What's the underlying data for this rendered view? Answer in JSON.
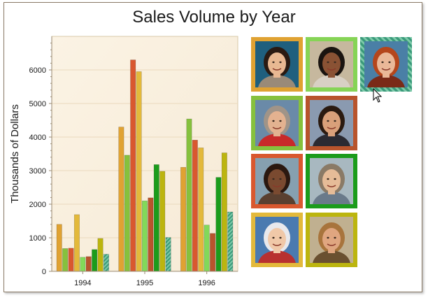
{
  "chart_data": {
    "type": "bar",
    "title": "Sales Volume by Year",
    "xlabel": "",
    "ylabel": "Thousands of Dollars",
    "categories": [
      "1994",
      "1995",
      "1996"
    ],
    "ylim": [
      0,
      7000
    ],
    "yticks": [
      0,
      1000,
      2000,
      3000,
      4000,
      5000,
      6000
    ],
    "grid": true,
    "legend": "none",
    "series": [
      {
        "values": [
          1400,
          4300,
          3100
        ],
        "color": "#e0a232"
      },
      {
        "values": [
          680,
          3460,
          4540
        ],
        "color": "#86c13d"
      },
      {
        "values": [
          690,
          6300,
          3910
        ],
        "color": "#d9582f"
      },
      {
        "values": [
          1690,
          5950,
          3680
        ],
        "color": "#e3b93b"
      },
      {
        "values": [
          420,
          2100,
          1380
        ],
        "color": "#82d95a"
      },
      {
        "values": [
          440,
          2190,
          1130
        ],
        "color": "#b8542c"
      },
      {
        "values": [
          650,
          3180,
          2800
        ],
        "color": "#1b9c1b"
      },
      {
        "values": [
          980,
          2980,
          3530
        ],
        "color": "#bcb50f"
      },
      {
        "values": [
          510,
          1010,
          1770
        ],
        "color": "#4aa582",
        "hatched": true
      }
    ]
  },
  "gallery": {
    "photos": [
      {
        "name": "photo-woman-dark-hair",
        "frame_color": "#e0a232",
        "bg": "#1f5f7e",
        "skin": "#e8b892",
        "hair": "#2a1a12",
        "shirt": "#9a8a78"
      },
      {
        "name": "photo-man-phone",
        "frame_color": "#86d456",
        "bg": "#c6b89e",
        "skin": "#8a5234",
        "hair": "#1a1410",
        "shirt": "#d8d0c4"
      },
      {
        "name": "photo-woman-red-hair",
        "frame_color": "#4aa582",
        "bg": "#4a7fa6",
        "skin": "#eab898",
        "hair": "#b4461c",
        "shirt": "#7a2a18",
        "selected": true
      },
      {
        "name": "photo-man-gray-hair",
        "frame_color": "#86c13d",
        "bg": "#6a8aa8",
        "skin": "#e3b290",
        "hair": "#a09488",
        "shirt": "#c82a2a"
      },
      {
        "name": "photo-man-dark-shirt",
        "frame_color": "#b8542c",
        "bg": "#8a9ab0",
        "skin": "#d9a07a",
        "hair": "#2a1a10",
        "shirt": "#2a2a32"
      },
      {
        "name": "photo-woman-curly-hair",
        "frame_color": "#d9582f",
        "bg": "#86a0b0",
        "skin": "#7a4a30",
        "hair": "#2a1810",
        "shirt": "#5a4030"
      },
      {
        "name": "photo-man-glasses",
        "frame_color": "#1b9c1b",
        "bg": "#a8b8c0",
        "skin": "#e6bc98",
        "hair": "#8a7a66",
        "shirt": "#6a7a8a"
      },
      {
        "name": "photo-older-woman",
        "frame_color": "#e3b93b",
        "bg": "#4a7ab0",
        "skin": "#f0c8a8",
        "hair": "#e8e8ec",
        "shirt": "#b83030"
      },
      {
        "name": "photo-woman-smiling",
        "frame_color": "#bcb50f",
        "bg": "#c0b090",
        "skin": "#e0a680",
        "hair": "#a8743c",
        "shirt": "#6a5030"
      }
    ]
  }
}
